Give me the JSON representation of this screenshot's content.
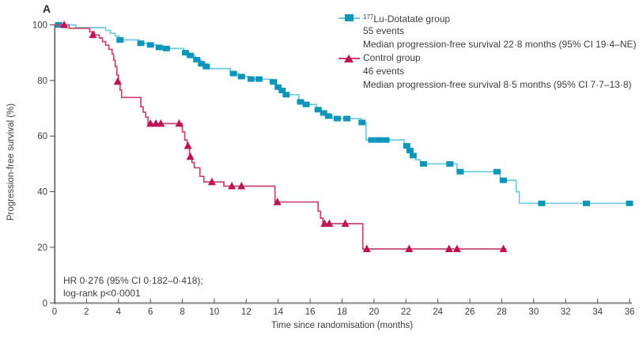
{
  "panel_label": "A",
  "chart_data": {
    "type": "line",
    "subtype": "kaplan_meier_step",
    "xlabel": "Time since randomisation (months)",
    "ylabel": "Progression-free survival (%)",
    "xlim": [
      0,
      36
    ],
    "ylim": [
      0,
      100
    ],
    "x_ticks": [
      0,
      2,
      4,
      6,
      8,
      10,
      12,
      14,
      16,
      18,
      20,
      22,
      24,
      26,
      28,
      30,
      32,
      34,
      36
    ],
    "y_ticks": [
      0,
      20,
      40,
      60,
      80,
      100
    ],
    "grid": false,
    "legend_position": "top-right",
    "annotation": {
      "line1": "HR 0·276 (95% CI 0·182–0·418);",
      "line2": "log-rank p<0·0001"
    },
    "axis_colors": {
      "x_axis_line": "#9B9B9B",
      "y_axis_line": "#4A4A4A",
      "tick": "#4A4A4A",
      "text": "#3D3D3D"
    },
    "series": [
      {
        "name_sup": "177",
        "name": "Lu-Dotatate group",
        "events_label": "55 events",
        "median_label": "Median progression-free survival 22·8 months (95% CI 19·4–NE)",
        "marker": "square",
        "line_color": "#6FC9E0",
        "marker_color": "#0D95BA",
        "end_t": 36,
        "steps": [
          [
            0,
            100
          ],
          [
            1.33,
            99
          ],
          [
            3.2,
            98
          ],
          [
            3.5,
            97
          ],
          [
            3.8,
            96
          ],
          [
            4.05,
            94.6
          ],
          [
            5.3,
            93.4
          ],
          [
            5.9,
            92.8
          ],
          [
            6.4,
            91.9
          ],
          [
            7.0,
            91.5
          ],
          [
            8.1,
            90
          ],
          [
            8.4,
            89
          ],
          [
            8.8,
            87.5
          ],
          [
            9.2,
            86
          ],
          [
            9.6,
            84.3
          ],
          [
            11.0,
            82.5
          ],
          [
            11.5,
            81.4
          ],
          [
            12.2,
            80.5
          ],
          [
            13.5,
            79.5
          ],
          [
            13.9,
            77.6
          ],
          [
            14.15,
            76.4
          ],
          [
            14.4,
            74.9
          ],
          [
            15.3,
            72.3
          ],
          [
            15.6,
            71.4
          ],
          [
            16.4,
            69.5
          ],
          [
            16.7,
            68.3
          ],
          [
            17.0,
            67.2
          ],
          [
            17.4,
            66.3
          ],
          [
            19.2,
            64.9
          ],
          [
            19.5,
            58.6
          ],
          [
            21.9,
            56.5
          ],
          [
            22.15,
            54.8
          ],
          [
            22.35,
            53
          ],
          [
            22.6,
            51.5
          ],
          [
            22.9,
            50
          ],
          [
            25.2,
            47.2
          ],
          [
            27.9,
            44.1
          ],
          [
            28.9,
            40
          ],
          [
            29.1,
            35.8
          ]
        ],
        "censors": [
          [
            0.25,
            100
          ],
          [
            4.1,
            94.6
          ],
          [
            5.4,
            93.4
          ],
          [
            6.0,
            92.8
          ],
          [
            6.55,
            91.9
          ],
          [
            7.0,
            91.5
          ],
          [
            8.2,
            90
          ],
          [
            8.5,
            89
          ],
          [
            8.9,
            87.5
          ],
          [
            9.2,
            86
          ],
          [
            9.5,
            85
          ],
          [
            11.2,
            82.5
          ],
          [
            11.7,
            81.4
          ],
          [
            12.3,
            80.5
          ],
          [
            12.8,
            80.5
          ],
          [
            13.7,
            79.5
          ],
          [
            14.0,
            77.6
          ],
          [
            14.25,
            76.4
          ],
          [
            14.5,
            74.9
          ],
          [
            15.4,
            72.3
          ],
          [
            15.75,
            71.4
          ],
          [
            16.5,
            69.5
          ],
          [
            16.85,
            68.3
          ],
          [
            17.15,
            67.2
          ],
          [
            17.7,
            66.3
          ],
          [
            18.3,
            66.3
          ],
          [
            19.25,
            64.9
          ],
          [
            19.85,
            58.6
          ],
          [
            20.3,
            58.6
          ],
          [
            20.75,
            58.6
          ],
          [
            22.05,
            56.5
          ],
          [
            22.25,
            54.8
          ],
          [
            22.45,
            53
          ],
          [
            23.1,
            50
          ],
          [
            24.75,
            50
          ],
          [
            25.4,
            47.2
          ],
          [
            27.7,
            47.2
          ],
          [
            28.1,
            44.1
          ],
          [
            30.5,
            35.8
          ],
          [
            33.3,
            35.8
          ],
          [
            36,
            35.8
          ]
        ]
      },
      {
        "name": "Control group",
        "events_label": "46 events",
        "median_label": "Median progression-free survival 8·5 months (95% CI 7·7–13·8)",
        "marker": "triangle",
        "line_color": "#C8436E",
        "marker_color": "#BE1457",
        "end_t": 28.3,
        "steps": [
          [
            0,
            100
          ],
          [
            0.9,
            98.8
          ],
          [
            2.2,
            97.5
          ],
          [
            2.5,
            96.4
          ],
          [
            2.8,
            95.3
          ],
          [
            3.0,
            94
          ],
          [
            3.2,
            92.7
          ],
          [
            3.4,
            91.2
          ],
          [
            3.6,
            89.5
          ],
          [
            3.7,
            87.3
          ],
          [
            3.8,
            85
          ],
          [
            3.9,
            82
          ],
          [
            4.0,
            79.6
          ],
          [
            4.1,
            76.5
          ],
          [
            4.2,
            73.9
          ],
          [
            5.4,
            70.5
          ],
          [
            5.55,
            68.6
          ],
          [
            5.7,
            66.8
          ],
          [
            5.85,
            64.5
          ],
          [
            8.0,
            61.5
          ],
          [
            8.15,
            58.6
          ],
          [
            8.3,
            56.5
          ],
          [
            8.45,
            52.6
          ],
          [
            8.6,
            50.5
          ],
          [
            8.75,
            48.6
          ],
          [
            9.1,
            45.5
          ],
          [
            9.35,
            43.5
          ],
          [
            10.6,
            42
          ],
          [
            13.8,
            36.3
          ],
          [
            16.5,
            33
          ],
          [
            16.65,
            30.5
          ],
          [
            16.8,
            28.5
          ],
          [
            19.3,
            19.4
          ]
        ],
        "censors": [
          [
            0.6,
            100
          ],
          [
            2.4,
            96.4
          ],
          [
            3.95,
            79.6
          ],
          [
            6.0,
            64.5
          ],
          [
            6.35,
            64.5
          ],
          [
            6.65,
            64.5
          ],
          [
            7.8,
            64.5
          ],
          [
            8.35,
            56.5
          ],
          [
            8.5,
            52.6
          ],
          [
            9.85,
            43.5
          ],
          [
            11.1,
            42
          ],
          [
            11.7,
            42
          ],
          [
            13.95,
            36.3
          ],
          [
            16.9,
            28.5
          ],
          [
            17.2,
            28.5
          ],
          [
            18.2,
            28.5
          ],
          [
            19.55,
            19.4
          ],
          [
            22.2,
            19.4
          ],
          [
            24.7,
            19.4
          ],
          [
            25.2,
            19.4
          ],
          [
            28.1,
            19.4
          ]
        ]
      }
    ]
  }
}
